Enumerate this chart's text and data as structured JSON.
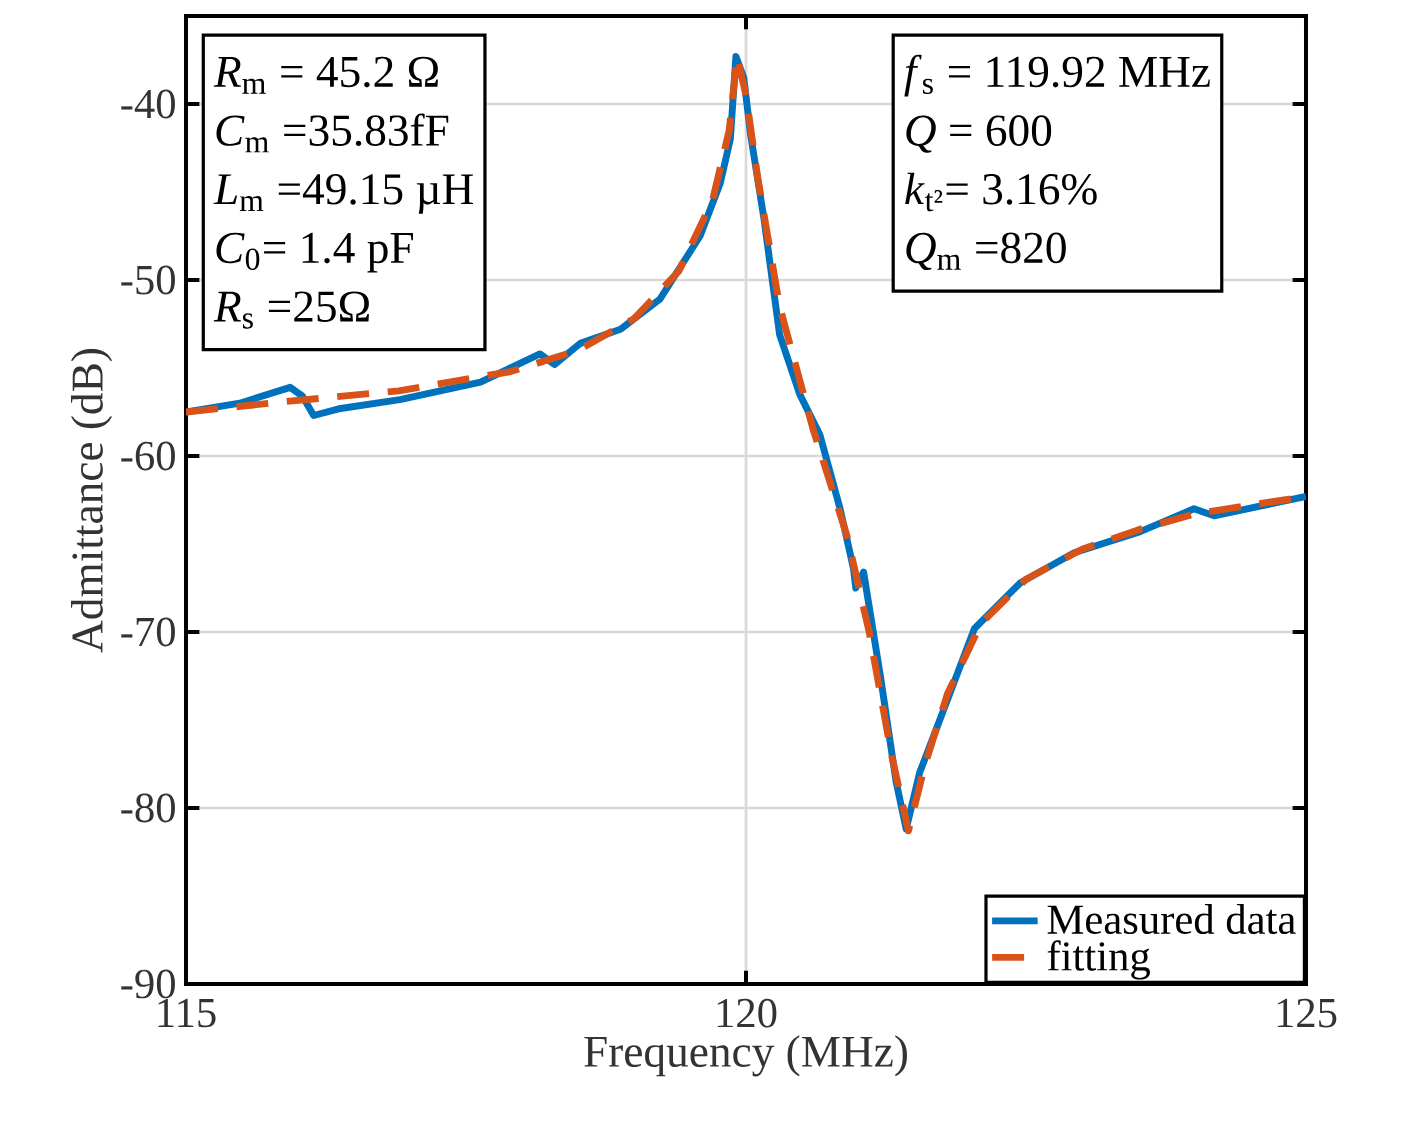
{
  "chart_data": {
    "type": "line",
    "xlabel": "Frequency (MHz)",
    "ylabel": "Admittance (dB)",
    "xlim": [
      115,
      125
    ],
    "xticks": [
      115,
      120,
      125
    ],
    "ylim": [
      -90,
      -35
    ],
    "yticks": [
      -90,
      -80,
      -70,
      -60,
      -50,
      -40
    ],
    "grid": true,
    "legend": "bottom right",
    "annotations": [
      "*R*$_{m}$ = 45.2 Ω",
      "*C*$_{m}$ =35.83fF",
      "*L*$_{m}$ =49.15 µH",
      "*C*$_{0}$= 1.4 pF",
      "*R*$_{s}$ =25Ω",
      "*f*$_{s}$ = 119.92 MHz",
      "*Q* = 600",
      "*k*$_{t²}$= 3.16%",
      "*Q*$_{m}$ =820"
    ],
    "series": [
      {
        "name": "Measured data",
        "color": "#0072bd",
        "line_style": "solid",
        "x": [
          115.0,
          115.48,
          115.93,
          116.04,
          116.14,
          116.38,
          116.91,
          117.63,
          118.16,
          118.29,
          118.52,
          118.88,
          119.23,
          119.59,
          119.77,
          119.86,
          119.91,
          119.98,
          120.04,
          120.16,
          120.3,
          120.48,
          120.66,
          120.84,
          120.96,
          120.98,
          121.05,
          121.2,
          121.34,
          121.43,
          121.55,
          121.73,
          122.04,
          122.45,
          122.93,
          123.52,
          124.0,
          124.18,
          125.0
        ],
        "values": [
          -57.5,
          -57.0,
          -56.1,
          -56.6,
          -57.7,
          -57.3,
          -56.8,
          -55.8,
          -54.2,
          -54.8,
          -53.6,
          -52.8,
          -51.1,
          -47.5,
          -44.5,
          -42.0,
          -37.3,
          -38.5,
          -41.7,
          -46.5,
          -53.1,
          -56.5,
          -58.8,
          -63.0,
          -66.4,
          -67.5,
          -66.6,
          -72.5,
          -78.5,
          -81.2,
          -78.0,
          -75.0,
          -69.8,
          -67.2,
          -65.5,
          -64.3,
          -63.0,
          -63.4,
          -62.3
        ]
      },
      {
        "name": "fitting",
        "color": "#d95319",
        "line_style": "dashed",
        "x": [
          115.0,
          115.9,
          116.9,
          117.9,
          118.5,
          119.0,
          119.4,
          119.7,
          119.85,
          119.92,
          120.0,
          120.1,
          120.3,
          120.6,
          120.9,
          121.1,
          121.3,
          121.45,
          121.6,
          121.8,
          122.1,
          122.5,
          123.0,
          123.5,
          124.0,
          124.5,
          125.0
        ],
        "values": [
          -57.5,
          -56.9,
          -56.3,
          -55.2,
          -54.0,
          -52.2,
          -49.5,
          -45.5,
          -41.5,
          -37.3,
          -39.5,
          -44.0,
          -51.5,
          -58.5,
          -64.5,
          -70.0,
          -77.0,
          -81.3,
          -77.5,
          -73.5,
          -69.5,
          -67.0,
          -65.3,
          -64.2,
          -63.3,
          -62.8,
          -62.3
        ]
      }
    ]
  }
}
